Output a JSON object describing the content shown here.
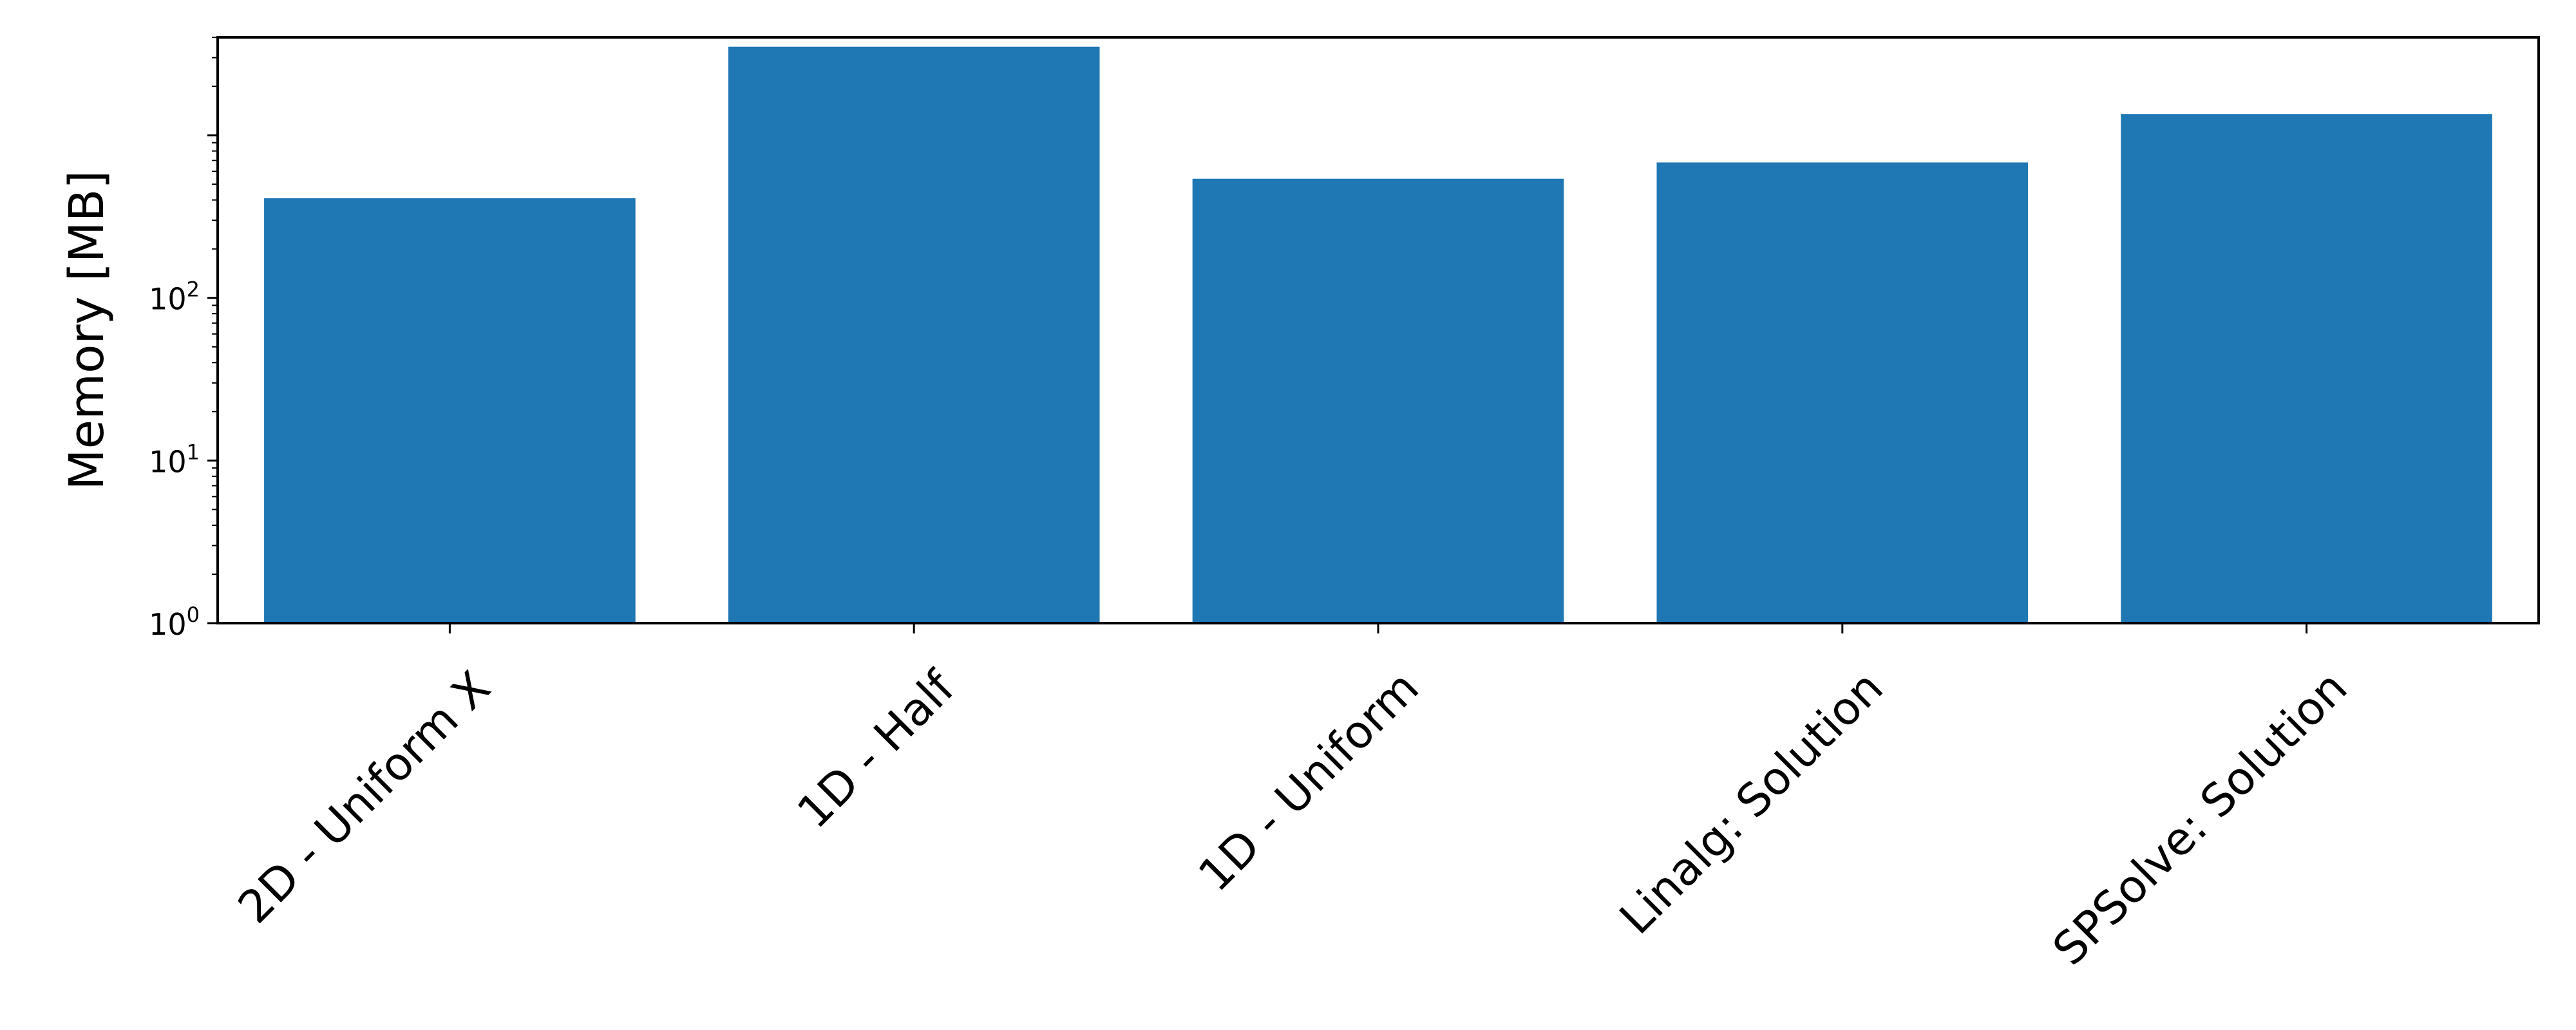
{
  "chart_data": {
    "type": "bar",
    "title": "",
    "xlabel": "",
    "ylabel": "Memory [MB]",
    "yscale": "log",
    "ylim": [
      1,
      4000
    ],
    "ytick_labels": [
      {
        "value": 1,
        "base": "10",
        "exp": "0"
      },
      {
        "value": 10,
        "base": "10",
        "exp": "1"
      },
      {
        "value": 100,
        "base": "10",
        "exp": "2"
      }
    ],
    "categories": [
      "2D - Uniform X",
      "1D - Half",
      "1D - Uniform",
      "Linalg: Solution",
      "SPSolve: Solution"
    ],
    "values": [
      410,
      3500,
      540,
      680,
      1350
    ],
    "color": "#1f77b4",
    "grid": false,
    "legend": "none"
  }
}
